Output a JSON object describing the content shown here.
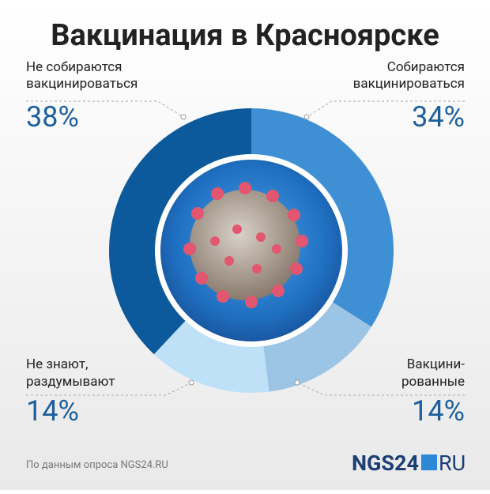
{
  "chart_data": {
    "type": "pie",
    "title": "Вакцинация в Красноярске",
    "categories": [
      [
        "Собираются",
        "вакцинироваться"
      ],
      [
        "Вакцини-",
        "рованные"
      ],
      [
        "Не знают,",
        "раздумывают"
      ],
      [
        "Не собираются",
        "вакцинироваться"
      ]
    ],
    "values": [
      34,
      14,
      14,
      38
    ],
    "value_labels": [
      "34%",
      "14%",
      "14%",
      "38%"
    ],
    "colors": [
      "#3f8fd5",
      "#9cc4e4",
      "#bfe1f8",
      "#0c5a9b"
    ],
    "source": "По данным опроса NGS24.RU",
    "logo": [
      "NGS24",
      "RU"
    ]
  }
}
